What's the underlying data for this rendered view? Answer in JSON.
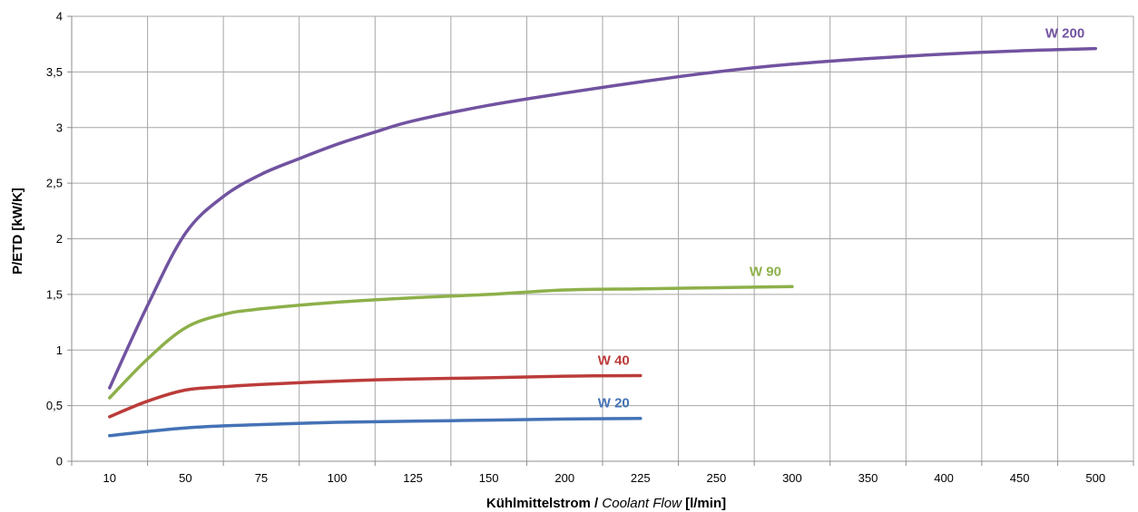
{
  "chart_data": {
    "type": "line",
    "categories": [
      "10",
      "50",
      "75",
      "100",
      "125",
      "150",
      "200",
      "225",
      "250",
      "300",
      "350",
      "400",
      "450",
      "500"
    ],
    "ylim": [
      0,
      4
    ],
    "yticks": [
      "0",
      "0,5",
      "1",
      "1,5",
      "2",
      "2,5",
      "3",
      "3,5",
      "4"
    ],
    "ylabel": "P/ETD [kW/K]",
    "xlabel": {
      "part1": "Kühlmittelstrom / ",
      "part2": "Coolant Flow",
      "part3": " [l/min]"
    },
    "grid": true,
    "series": [
      {
        "name": "W 200",
        "color": "#7153a0",
        "points": [
          [
            0,
            0.66
          ],
          [
            0.5,
            1.4
          ],
          [
            1,
            2.05
          ],
          [
            1.5,
            2.38
          ],
          [
            2,
            2.58
          ],
          [
            2.5,
            2.72
          ],
          [
            3,
            2.85
          ],
          [
            3.5,
            2.96
          ],
          [
            4,
            3.06
          ],
          [
            5,
            3.2
          ],
          [
            6,
            3.31
          ],
          [
            7,
            3.41
          ],
          [
            8,
            3.5
          ],
          [
            9,
            3.57
          ],
          [
            10,
            3.62
          ],
          [
            11,
            3.66
          ],
          [
            12,
            3.69
          ],
          [
            13,
            3.71
          ]
        ]
      },
      {
        "name": "W 90",
        "color": "#8db04a",
        "points": [
          [
            0,
            0.57
          ],
          [
            0.5,
            0.92
          ],
          [
            1,
            1.2
          ],
          [
            1.5,
            1.32
          ],
          [
            2,
            1.37
          ],
          [
            3,
            1.43
          ],
          [
            4,
            1.47
          ],
          [
            5,
            1.5
          ],
          [
            6,
            1.54
          ],
          [
            7,
            1.55
          ],
          [
            8,
            1.56
          ],
          [
            9,
            1.57
          ]
        ]
      },
      {
        "name": "W 40",
        "color": "#bb3c3a",
        "points": [
          [
            0,
            0.4
          ],
          [
            0.5,
            0.54
          ],
          [
            1,
            0.64
          ],
          [
            1.5,
            0.67
          ],
          [
            2,
            0.69
          ],
          [
            3,
            0.72
          ],
          [
            4,
            0.74
          ],
          [
            5,
            0.75
          ],
          [
            6,
            0.765
          ],
          [
            7,
            0.77
          ]
        ]
      },
      {
        "name": "W 20",
        "color": "#4472b5",
        "points": [
          [
            0,
            0.23
          ],
          [
            1,
            0.3
          ],
          [
            2,
            0.33
          ],
          [
            3,
            0.35
          ],
          [
            4,
            0.36
          ],
          [
            5,
            0.37
          ],
          [
            6,
            0.38
          ],
          [
            7,
            0.385
          ]
        ]
      }
    ]
  }
}
